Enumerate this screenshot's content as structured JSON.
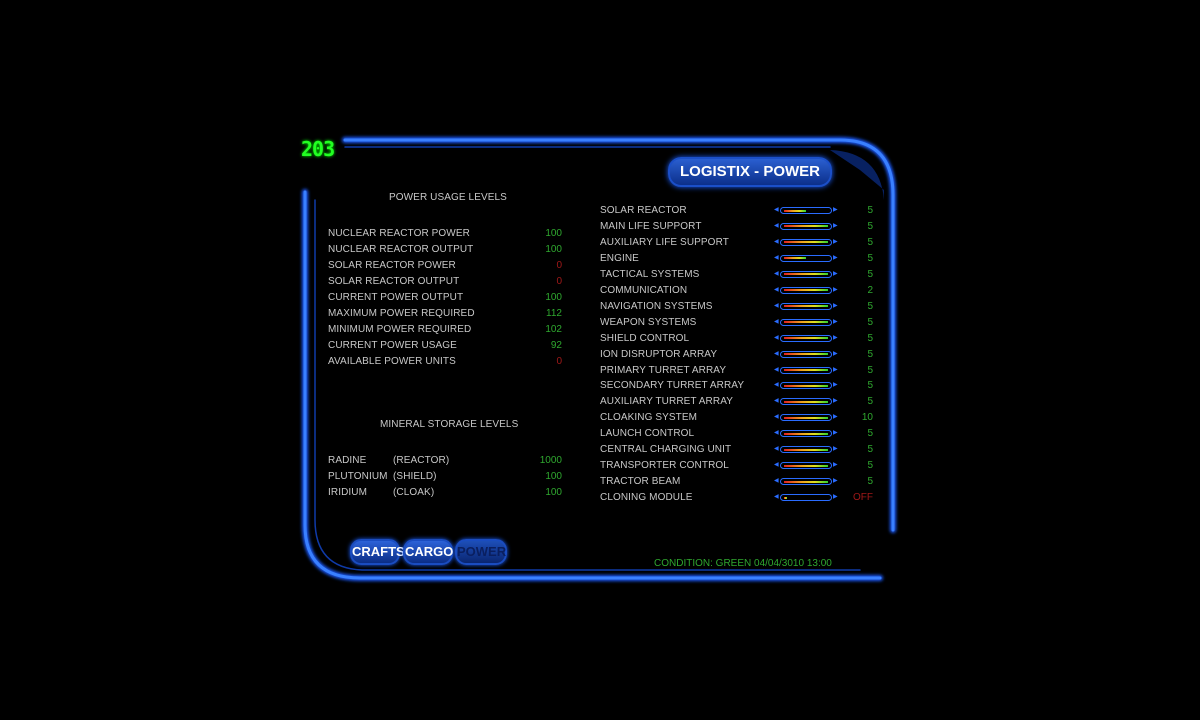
{
  "counter": "203",
  "title": "LOGISTIX - POWER",
  "power": {
    "heading": "POWER USAGE LEVELS",
    "rows": [
      {
        "label": "NUCLEAR REACTOR POWER",
        "value": "100",
        "status": "good"
      },
      {
        "label": "NUCLEAR REACTOR OUTPUT",
        "value": "100",
        "status": "good"
      },
      {
        "label": "SOLAR REACTOR POWER",
        "value": "0",
        "status": "bad"
      },
      {
        "label": "SOLAR REACTOR OUTPUT",
        "value": "0",
        "status": "bad"
      },
      {
        "label": "CURRENT POWER OUTPUT",
        "value": "100",
        "status": "good"
      },
      {
        "label": "MAXIMUM POWER REQUIRED",
        "value": "112",
        "status": "good"
      },
      {
        "label": "MINIMUM POWER REQUIRED",
        "value": "102",
        "status": "good"
      },
      {
        "label": "CURRENT POWER USAGE",
        "value": "92",
        "status": "good"
      },
      {
        "label": "AVAILABLE POWER UNITS",
        "value": "0",
        "status": "bad"
      }
    ]
  },
  "minerals": {
    "heading": "MINERAL STORAGE LEVELS",
    "rows": [
      {
        "name": "RADINE",
        "use": "(REACTOR)",
        "value": "1000"
      },
      {
        "name": "PLUTONIUM",
        "use": "(SHIELD)",
        "value": "100"
      },
      {
        "name": "IRIDIUM",
        "use": "(CLOAK)",
        "value": "100"
      }
    ]
  },
  "systems": [
    {
      "label": "SOLAR REACTOR",
      "level": 0.5,
      "value": "5"
    },
    {
      "label": "MAIN LIFE SUPPORT",
      "level": 1,
      "value": "5"
    },
    {
      "label": "AUXILIARY LIFE SUPPORT",
      "level": 1,
      "value": "5"
    },
    {
      "label": "ENGINE",
      "level": 0.5,
      "value": "5"
    },
    {
      "label": "TACTICAL SYSTEMS",
      "level": 1,
      "value": "5"
    },
    {
      "label": "COMMUNICATION",
      "level": 1,
      "value": "2"
    },
    {
      "label": "NAVIGATION SYSTEMS",
      "level": 1,
      "value": "5"
    },
    {
      "label": "WEAPON SYSTEMS",
      "level": 1,
      "value": "5"
    },
    {
      "label": "SHIELD CONTROL",
      "level": 1,
      "value": "5"
    },
    {
      "label": "ION DISRUPTOR ARRAY",
      "level": 1,
      "value": "5"
    },
    {
      "label": "PRIMARY TURRET ARRAY",
      "level": 1,
      "value": "5"
    },
    {
      "label": "SECONDARY TURRET ARRAY",
      "level": 1,
      "value": "5"
    },
    {
      "label": "AUXILIARY TURRET ARRAY",
      "level": 1,
      "value": "5"
    },
    {
      "label": "CLOAKING SYSTEM",
      "level": 1,
      "value": "10"
    },
    {
      "label": "LAUNCH CONTROL",
      "level": 1,
      "value": "5"
    },
    {
      "label": "CENTRAL CHARGING UNIT",
      "level": 1,
      "value": "5"
    },
    {
      "label": "TRANSPORTER CONTROL",
      "level": 1,
      "value": "5"
    },
    {
      "label": "TRACTOR BEAM",
      "level": 1,
      "value": "5"
    },
    {
      "label": "CLONING MODULE",
      "level": 0.06,
      "value": "OFF"
    }
  ],
  "nav": [
    {
      "label": "CRAFTS",
      "active": false
    },
    {
      "label": "CARGO",
      "active": false
    },
    {
      "label": "POWER",
      "active": true
    }
  ],
  "status": "CONDITION: GREEN  04/04/3010 13:00",
  "colors": {
    "frame": "#1a5cff",
    "good": "#2fa82f",
    "bad": "#a01818",
    "counter": "#22ff22"
  }
}
